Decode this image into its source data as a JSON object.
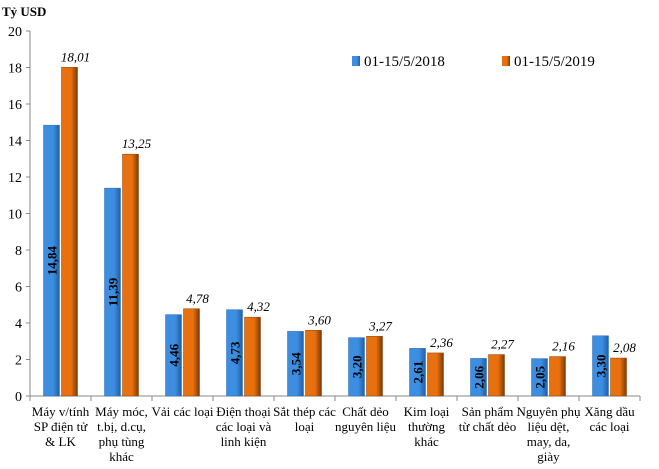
{
  "chart_data": {
    "type": "bar",
    "ylabel": "Tỷ USD",
    "ylim": [
      0,
      20
    ],
    "yticks": [
      0,
      2,
      4,
      6,
      8,
      10,
      12,
      14,
      16,
      18,
      20
    ],
    "grid": false,
    "legend_position": "top-right",
    "categories": [
      "Máy v/tính SP điện tử & LK",
      "Máy móc, t.bị, d.cụ, phụ tùng khác",
      "Vải các loại",
      "Điện thoại các loại và linh kiện",
      "Sắt thép các loại",
      "Chất dẻo nguyên liệu",
      "Kim loại thường khác",
      "Sản phẩm từ chất dẻo",
      "Nguyên phụ liệu dệt, may, da, giày",
      "Xăng dầu các loại"
    ],
    "series": [
      {
        "name": "01-15/5/2018",
        "color": "#3d8ee0",
        "values": [
          14.84,
          11.39,
          4.46,
          4.73,
          3.54,
          3.2,
          2.61,
          2.06,
          2.05,
          3.3
        ],
        "labels": [
          "14,84",
          "11,39",
          "4,46",
          "4,73",
          "3,54",
          "3,20",
          "2,61",
          "2,06",
          "2,05",
          "3,30"
        ]
      },
      {
        "name": "01-15/5/2019",
        "color": "#e8700f",
        "values": [
          18.01,
          13.25,
          4.78,
          4.32,
          3.6,
          3.27,
          2.36,
          2.27,
          2.16,
          2.08
        ],
        "labels": [
          "18,01",
          "13,25",
          "4,78",
          "4,32",
          "3,60",
          "3,27",
          "2,36",
          "2,27",
          "2,16",
          "2,08"
        ]
      }
    ]
  }
}
